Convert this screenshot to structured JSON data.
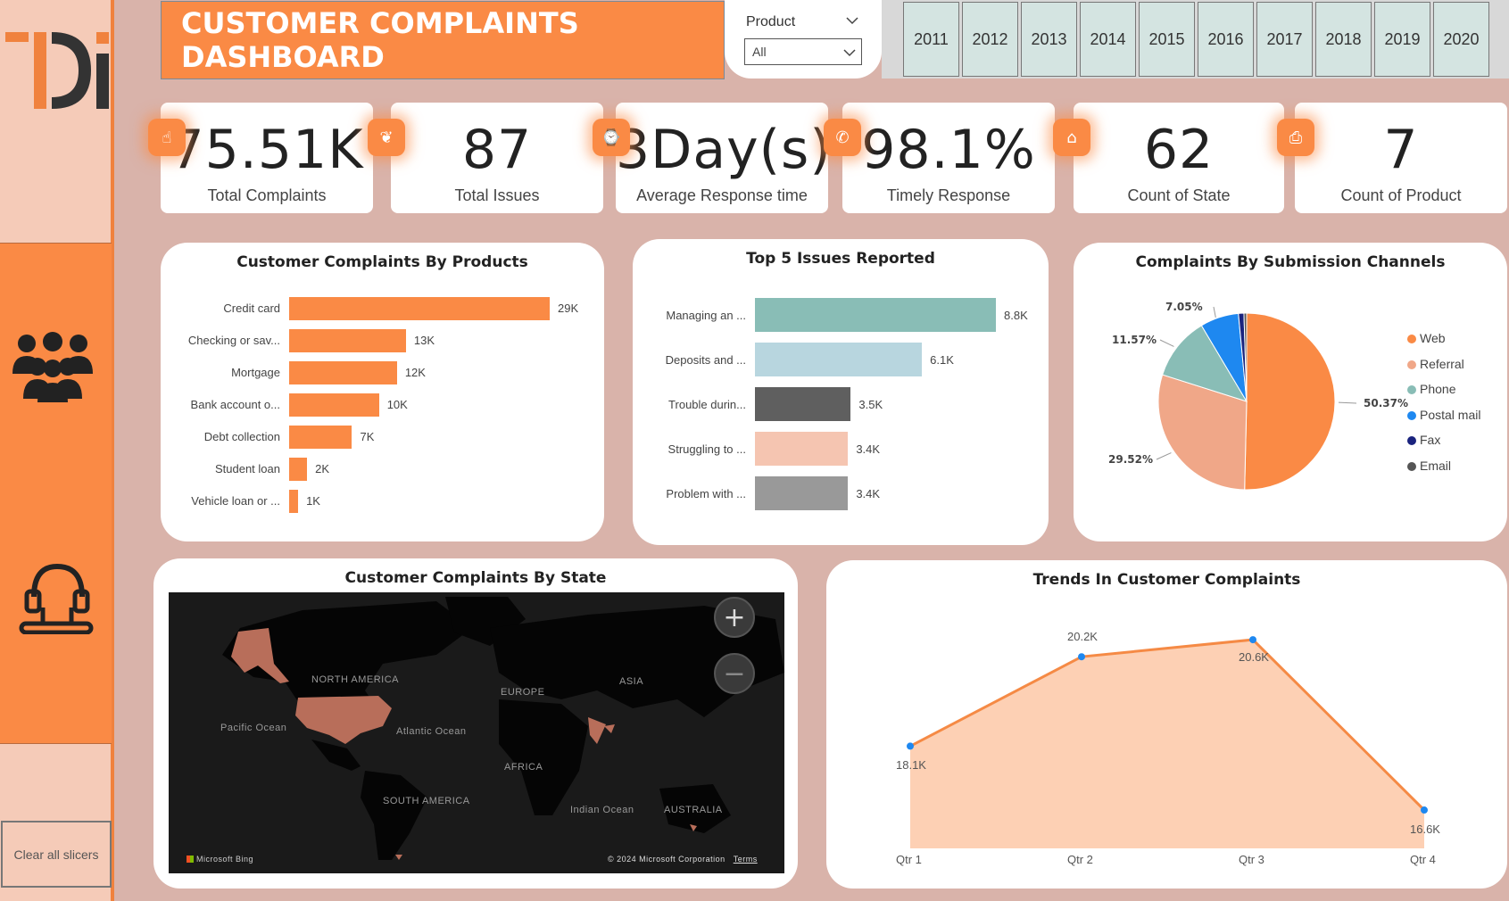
{
  "header": {
    "title": "CUSTOMER COMPLAINTS DASHBOARD"
  },
  "slicer": {
    "label": "Product",
    "value": "All"
  },
  "years": [
    "2011",
    "2012",
    "2013",
    "2014",
    "2015",
    "2016",
    "2017",
    "2018",
    "2019",
    "2020"
  ],
  "sidebar": {
    "clear_label": "Clear all slicers",
    "logo_text": "Di"
  },
  "kpis": [
    {
      "value": "75.51K",
      "label": "Total Complaints",
      "icon": "hand-icon"
    },
    {
      "value": "87",
      "label": "Total Issues",
      "icon": "leaf-icon"
    },
    {
      "value": "3Day(s)",
      "label": "Average Response time",
      "icon": "clock-icon"
    },
    {
      "value": "98.1%",
      "label": "Timely Response",
      "icon": "phone-icon"
    },
    {
      "value": "62",
      "label": "Count of State",
      "icon": "building-icon"
    },
    {
      "value": "7",
      "label": "Count of Product",
      "icon": "box-icon"
    }
  ],
  "map": {
    "title": "Customer Complaints By State",
    "labels": {
      "north_america": "NORTH AMERICA",
      "europe": "EUROPE",
      "asia": "ASIA",
      "pacific": "Pacific Ocean",
      "atlantic": "Atlantic Ocean",
      "africa": "AFRICA",
      "south_america": "SOUTH AMERICA",
      "indian": "Indian Ocean",
      "australia": "AUSTRALIA"
    },
    "footer_left": "Microsoft Bing",
    "footer_right": "© 2024 Microsoft Corporation",
    "terms": "Terms"
  },
  "chart_data": [
    {
      "type": "bar",
      "title": "Customer Complaints By Products",
      "categories": [
        "Credit card",
        "Checking or sav...",
        "Mortgage",
        "Bank account o...",
        "Debt collection",
        "Student loan",
        "Vehicle loan or ..."
      ],
      "values": [
        29,
        13,
        12,
        10,
        7,
        2,
        1
      ],
      "labels": [
        "29K",
        "13K",
        "12K",
        "10K",
        "7K",
        "2K",
        "1K"
      ],
      "color": "#fa8a45"
    },
    {
      "type": "bar",
      "title": "Top 5 Issues Reported",
      "categories": [
        "Managing an ...",
        "Deposits and ...",
        "Trouble durin...",
        "Struggling to ...",
        "Problem with ..."
      ],
      "values": [
        8.8,
        6.1,
        3.5,
        3.4,
        3.4
      ],
      "labels": [
        "8.8K",
        "6.1K",
        "3.5K",
        "3.4K",
        "3.4K"
      ],
      "colors": [
        "#89bdb6",
        "#b8d6df",
        "#5f5f5f",
        "#f5c5b1",
        "#999999"
      ]
    },
    {
      "type": "pie",
      "title": "Complaints By Submission Channels",
      "categories": [
        "Web",
        "Referral",
        "Phone",
        "Postal mail",
        "Fax",
        "Email"
      ],
      "values": [
        50.37,
        29.52,
        11.57,
        7.05,
        1.0,
        0.49
      ],
      "labels": [
        "50.37%",
        "29.52%",
        "11.57%",
        "7.05%"
      ],
      "colors": [
        "#fa8a45",
        "#f0a788",
        "#89bdb6",
        "#1e88f0",
        "#1a237e",
        "#555555"
      ],
      "legend": "right"
    },
    {
      "type": "area",
      "title": "Trends In Customer Complaints",
      "categories": [
        "Qtr 1",
        "Qtr 2",
        "Qtr 3",
        "Qtr 4"
      ],
      "values": [
        18.1,
        20.2,
        20.6,
        16.6
      ],
      "labels": [
        "18.1K",
        "20.2K",
        "20.6K",
        "16.6K"
      ],
      "line_color": "#f58a45",
      "fill_color": "#fdd0b4",
      "point_color": "#1e88f0"
    }
  ]
}
